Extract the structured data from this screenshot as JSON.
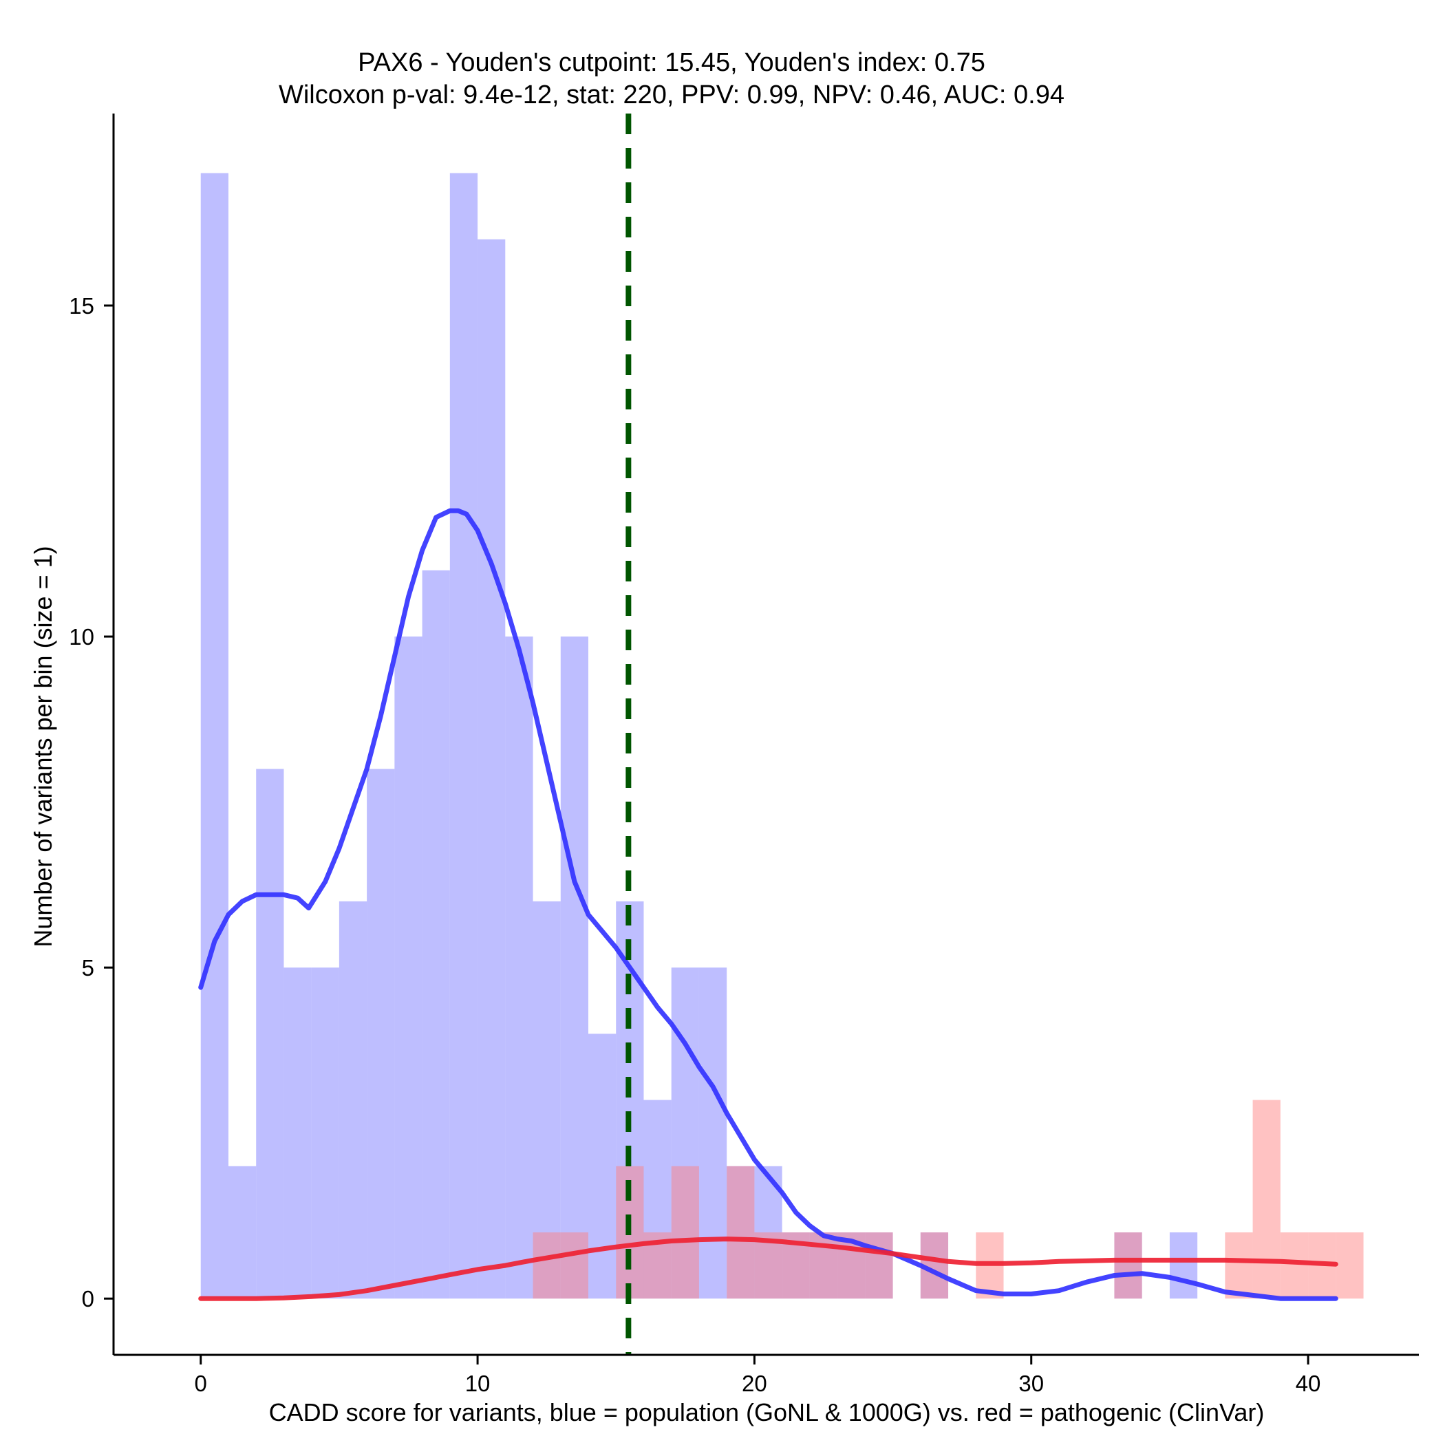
{
  "chart_data": {
    "type": "bar",
    "title": "PAX6 - Youden's cutpoint: 15.45, Youden's index: 0.75",
    "subtitle": "Wilcoxon p-val: 9.4e-12, stat: 220, PPV: 0.99, NPV: 0.46, AUC: 0.94",
    "xlabel": "CADD score for variants, blue = population (GoNL & 1000G) vs. red = pathogenic (ClinVar)",
    "ylabel": "Number of variants per bin (size = 1)",
    "xlim": [
      -3.15,
      44.0
    ],
    "ylim": [
      -0.85,
      17.9
    ],
    "xticks": [
      0,
      10,
      20,
      30,
      40
    ],
    "xtick_labels": [
      "0",
      "10",
      "20",
      "30",
      "40"
    ],
    "yticks": [
      0,
      5,
      10,
      15
    ],
    "ytick_labels": [
      "0",
      "5",
      "10",
      "15"
    ],
    "bin_size": 1,
    "cutpoint": 15.45,
    "series": [
      {
        "name": "population (GoNL & 1000G)",
        "color": "#7777ff",
        "bin_starts": [
          0,
          1,
          2,
          3,
          4,
          5,
          6,
          7,
          8,
          9,
          10,
          11,
          12,
          13,
          14,
          15,
          16,
          17,
          18,
          19,
          20,
          21,
          22,
          23,
          24,
          25,
          26,
          27,
          28,
          29,
          30,
          31,
          32,
          33,
          34,
          35,
          36,
          37,
          38,
          39,
          40,
          41
        ],
        "values": [
          17,
          2,
          8,
          5,
          5,
          6,
          8,
          10,
          11,
          17,
          16,
          10,
          6,
          10,
          4,
          6,
          3,
          5,
          5,
          2,
          2,
          1,
          1,
          1,
          1,
          0,
          1,
          0,
          0,
          0,
          0,
          0,
          0,
          1,
          0,
          1,
          0,
          0,
          0,
          0,
          0,
          0
        ]
      },
      {
        "name": "pathogenic (ClinVar)",
        "color": "#ff8080",
        "bin_starts": [
          0,
          1,
          2,
          3,
          4,
          5,
          6,
          7,
          8,
          9,
          10,
          11,
          12,
          13,
          14,
          15,
          16,
          17,
          18,
          19,
          20,
          21,
          22,
          23,
          24,
          25,
          26,
          27,
          28,
          29,
          30,
          31,
          32,
          33,
          34,
          35,
          36,
          37,
          38,
          39,
          40,
          41
        ],
        "values": [
          0,
          0,
          0,
          0,
          0,
          0,
          0,
          0,
          0,
          0,
          0,
          0,
          1,
          1,
          0,
          2,
          1,
          2,
          0,
          2,
          1,
          1,
          1,
          1,
          1,
          0,
          1,
          0,
          1,
          0,
          0,
          0,
          0,
          1,
          0,
          0,
          0,
          1,
          3,
          1,
          1,
          1
        ]
      }
    ],
    "density_curves": [
      {
        "name": "population density",
        "color": "#3333ff",
        "x": [
          0,
          0.5,
          1,
          1.5,
          2,
          2.5,
          3,
          3.5,
          3.9,
          4.5,
          5,
          5.5,
          6,
          6.5,
          7,
          7.5,
          8,
          8.5,
          9,
          9.3,
          9.6,
          10,
          10.5,
          11,
          11.5,
          12,
          12.5,
          13,
          13.5,
          14,
          14.5,
          15,
          15.5,
          16,
          16.5,
          17,
          17.5,
          18,
          18.5,
          19,
          19.5,
          20,
          20.5,
          21,
          21.5,
          22,
          22.5,
          23,
          23.5,
          24,
          25,
          26,
          27,
          28,
          29,
          30,
          31,
          32,
          33,
          34,
          35,
          36,
          37,
          38,
          39,
          40,
          41
        ],
        "y": [
          4.7,
          5.4,
          5.8,
          6.0,
          6.1,
          6.1,
          6.1,
          6.05,
          5.9,
          6.3,
          6.8,
          7.4,
          8.0,
          8.8,
          9.7,
          10.6,
          11.3,
          11.8,
          11.9,
          11.9,
          11.85,
          11.6,
          11.1,
          10.5,
          9.8,
          9.0,
          8.1,
          7.2,
          6.3,
          5.8,
          5.55,
          5.3,
          5.0,
          4.7,
          4.4,
          4.15,
          3.85,
          3.5,
          3.2,
          2.8,
          2.45,
          2.1,
          1.85,
          1.6,
          1.3,
          1.1,
          0.95,
          0.9,
          0.87,
          0.8,
          0.68,
          0.5,
          0.3,
          0.12,
          0.07,
          0.07,
          0.12,
          0.25,
          0.35,
          0.38,
          0.32,
          0.22,
          0.1,
          0.05,
          0.0,
          0.0,
          0.0
        ]
      },
      {
        "name": "pathogenic density",
        "color": "#ee2233",
        "x": [
          0,
          1,
          2,
          3,
          4,
          5,
          6,
          7,
          8,
          9,
          10,
          11,
          12,
          13,
          14,
          15,
          16,
          17,
          18,
          19,
          20,
          21,
          22,
          23,
          24,
          25,
          26,
          27,
          28,
          29,
          30,
          31,
          32,
          33,
          34,
          35,
          36,
          37,
          38,
          39,
          40,
          41
        ],
        "y": [
          0,
          0,
          0,
          0.01,
          0.03,
          0.06,
          0.12,
          0.2,
          0.28,
          0.36,
          0.44,
          0.5,
          0.58,
          0.65,
          0.72,
          0.78,
          0.83,
          0.87,
          0.89,
          0.9,
          0.89,
          0.86,
          0.82,
          0.78,
          0.73,
          0.68,
          0.62,
          0.56,
          0.53,
          0.53,
          0.54,
          0.56,
          0.57,
          0.58,
          0.58,
          0.58,
          0.58,
          0.58,
          0.57,
          0.56,
          0.54,
          0.52
        ]
      }
    ]
  }
}
